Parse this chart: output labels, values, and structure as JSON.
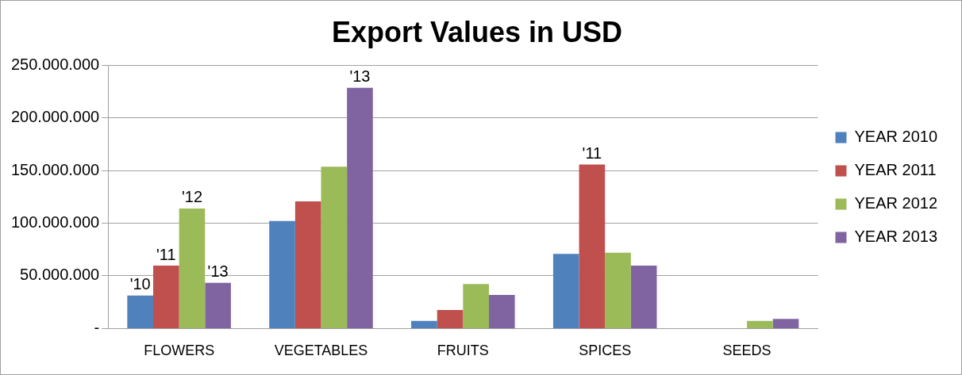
{
  "chart_data": {
    "type": "bar",
    "title": "Export Values in USD",
    "categories": [
      "FLOWERS",
      "VEGETABLES",
      "FRUITS",
      "SPICES",
      "SEEDS"
    ],
    "series": [
      {
        "name": "YEAR 2010",
        "color": "#4f81bd",
        "values": [
          31300000,
          102000000,
          7300000,
          70900000,
          0
        ]
      },
      {
        "name": "YEAR 2011",
        "color": "#c0504d",
        "values": [
          59700000,
          120700000,
          17600000,
          155700000,
          0
        ]
      },
      {
        "name": "YEAR 2012",
        "color": "#9bbb59",
        "values": [
          114000000,
          153600000,
          42300000,
          72000000,
          7200000
        ]
      },
      {
        "name": "YEAR 2013",
        "color": "#8064a2",
        "values": [
          43400000,
          228600000,
          32000000,
          59800000,
          9200000
        ]
      }
    ],
    "ylim": [
      0,
      250000000
    ],
    "yticks": [
      {
        "value": 0,
        "label": "-"
      },
      {
        "value": 50000000,
        "label": "50.000.000"
      },
      {
        "value": 100000000,
        "label": "100.000.000"
      },
      {
        "value": 150000000,
        "label": "150.000.000"
      },
      {
        "value": 200000000,
        "label": "200.000.000"
      },
      {
        "value": 250000000,
        "label": "250.000.000"
      }
    ],
    "grid": "y",
    "legend": "right",
    "annotations": [
      {
        "text": "'10",
        "x": "FLOWERS",
        "y": 31300000
      },
      {
        "text": "'11",
        "x": "FLOWERS",
        "y": 59700000
      },
      {
        "text": "'12",
        "x": "FLOWERS",
        "y": 114000000
      },
      "'13",
      {
        "text": "'13",
        "x": "FLOWERS",
        "y": 43400000
      },
      {
        "text": "'11",
        "x": "SPICES",
        "y": 155700000
      }
    ]
  }
}
